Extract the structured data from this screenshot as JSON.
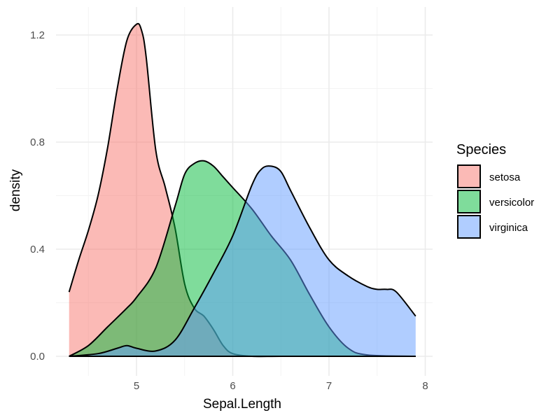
{
  "chart_data": {
    "type": "area",
    "subtype": "density",
    "title": "",
    "xlabel": "Sepal.Length",
    "ylabel": "density",
    "xlim": [
      4.3,
      7.9
    ],
    "ylim": [
      0,
      1.25
    ],
    "x_ticks": [
      5,
      6,
      7,
      8
    ],
    "x_tick_labels": [
      "5",
      "6",
      "7",
      "8"
    ],
    "y_ticks": [
      0.0,
      0.4,
      0.8,
      1.2
    ],
    "y_tick_labels": [
      "0.0",
      "0.4",
      "0.8",
      "1.2"
    ],
    "grid": true,
    "legend_position": "right",
    "legend": {
      "title": "Species",
      "entries": [
        "setosa",
        "versicolor",
        "virginica"
      ]
    },
    "series": [
      {
        "name": "setosa",
        "color": "#F8766D",
        "x": [
          4.3,
          4.4,
          4.5,
          4.6,
          4.7,
          4.8,
          4.9,
          5.0,
          5.05,
          5.1,
          5.2,
          5.3,
          5.4,
          5.5,
          5.6,
          5.7,
          5.8,
          5.9,
          6.0,
          6.2,
          6.5,
          7.0,
          7.9
        ],
        "y": [
          0.24,
          0.36,
          0.47,
          0.6,
          0.78,
          1.0,
          1.18,
          1.24,
          1.22,
          1.12,
          0.77,
          0.63,
          0.48,
          0.27,
          0.18,
          0.15,
          0.1,
          0.04,
          0.01,
          0.0,
          0.0,
          0.0,
          0.0
        ]
      },
      {
        "name": "versicolor",
        "color": "#00BA38",
        "x": [
          4.3,
          4.5,
          4.7,
          4.9,
          5.0,
          5.2,
          5.4,
          5.5,
          5.6,
          5.7,
          5.8,
          5.9,
          6.0,
          6.2,
          6.4,
          6.6,
          6.8,
          7.0,
          7.2,
          7.4,
          7.9
        ],
        "y": [
          0.0,
          0.04,
          0.11,
          0.18,
          0.22,
          0.33,
          0.56,
          0.68,
          0.72,
          0.73,
          0.71,
          0.67,
          0.63,
          0.55,
          0.45,
          0.36,
          0.23,
          0.11,
          0.03,
          0.005,
          0.0
        ]
      },
      {
        "name": "virginica",
        "color": "#619CFF",
        "x": [
          4.3,
          4.6,
          4.8,
          4.9,
          5.0,
          5.2,
          5.4,
          5.6,
          5.8,
          6.0,
          6.2,
          6.3,
          6.4,
          6.5,
          6.6,
          6.8,
          7.0,
          7.2,
          7.4,
          7.5,
          7.6,
          7.7,
          7.9
        ],
        "y": [
          0.0,
          0.01,
          0.03,
          0.04,
          0.03,
          0.02,
          0.06,
          0.18,
          0.31,
          0.45,
          0.64,
          0.7,
          0.71,
          0.69,
          0.62,
          0.48,
          0.36,
          0.3,
          0.26,
          0.25,
          0.25,
          0.24,
          0.15
        ]
      }
    ]
  },
  "labels": {
    "xlabel": "Sepal.Length",
    "ylabel": "density",
    "legend_title": "Species",
    "legend_entries": [
      "setosa",
      "versicolor",
      "virginica"
    ],
    "x_ticks": [
      "5",
      "6",
      "7",
      "8"
    ],
    "y_ticks": [
      "0.0",
      "0.4",
      "0.8",
      "1.2"
    ]
  },
  "colors": {
    "setosa_fill": "#F8766D",
    "versicolor_fill": "#00BA38",
    "virginica_fill": "#619CFF",
    "outline": "#000000",
    "grid_major": "#EBEBEB",
    "grid_minor": "#F3F3F3",
    "tick_text": "#4D4D4D"
  }
}
